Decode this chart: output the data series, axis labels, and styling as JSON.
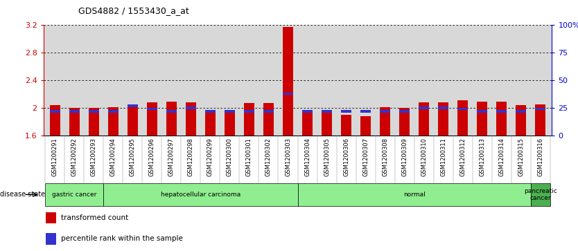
{
  "title": "GDS4882 / 1553430_a_at",
  "samples": [
    "GSM1200291",
    "GSM1200292",
    "GSM1200293",
    "GSM1200294",
    "GSM1200295",
    "GSM1200296",
    "GSM1200297",
    "GSM1200298",
    "GSM1200299",
    "GSM1200300",
    "GSM1200301",
    "GSM1200302",
    "GSM1200303",
    "GSM1200304",
    "GSM1200305",
    "GSM1200306",
    "GSM1200307",
    "GSM1200308",
    "GSM1200309",
    "GSM1200310",
    "GSM1200311",
    "GSM1200312",
    "GSM1200313",
    "GSM1200314",
    "GSM1200315",
    "GSM1200316"
  ],
  "transformed_count": [
    2.04,
    2.0,
    2.0,
    2.01,
    2.05,
    2.08,
    2.09,
    2.08,
    1.96,
    1.96,
    2.07,
    2.07,
    3.17,
    1.97,
    1.97,
    1.9,
    1.88,
    2.01,
    2.0,
    2.08,
    2.08,
    2.11,
    2.09,
    2.09,
    2.04,
    2.05
  ],
  "percentile_rank": [
    22,
    22,
    22,
    22,
    27,
    24,
    22,
    25,
    22,
    22,
    22,
    22,
    38,
    22,
    22,
    22,
    22,
    22,
    22,
    25,
    25,
    24,
    22,
    22,
    22,
    24
  ],
  "ylim_left": [
    1.6,
    3.2
  ],
  "ylim_right": [
    0,
    100
  ],
  "yticks_left": [
    1.6,
    2.0,
    2.4,
    2.8,
    3.2
  ],
  "ytick_labels_left": [
    "1.6",
    "2",
    "2.4",
    "2.8",
    "3.2"
  ],
  "yticks_right": [
    0,
    25,
    50,
    75,
    100
  ],
  "ytick_labels_right": [
    "0",
    "25",
    "50",
    "75",
    "100%"
  ],
  "bar_color": "#CC0000",
  "percentile_color": "#3333CC",
  "background_color": "#ffffff",
  "plot_bg_color": "#d8d8d8",
  "grid_color": "#000000",
  "left_axis_color": "#CC0000",
  "right_axis_color": "#0000CC",
  "bar_bottom": 1.6,
  "group_boundaries": [
    [
      0,
      3,
      "gastric cancer",
      "#90EE90"
    ],
    [
      3,
      13,
      "hepatocellular carcinoma",
      "#90EE90"
    ],
    [
      13,
      25,
      "normal",
      "#90EE90"
    ],
    [
      25,
      26,
      "pancreatic\ncancer",
      "#4CAF50"
    ]
  ]
}
